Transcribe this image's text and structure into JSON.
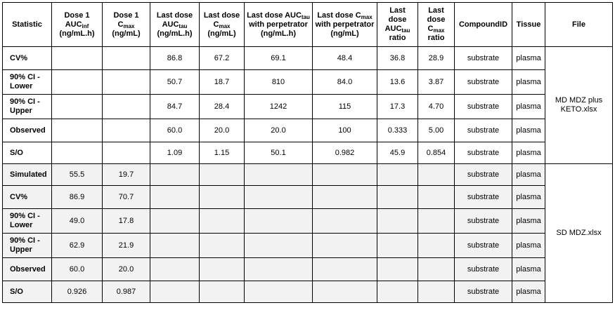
{
  "headers": [
    {
      "main": "Statistic"
    },
    {
      "main": "Dose 1 AUC",
      "sub": "inf",
      "rest": " (ng/mL.h)"
    },
    {
      "main": "Dose 1 C",
      "sub": "max",
      "rest": " (ng/mL)"
    },
    {
      "main": "Last dose AUC",
      "sub": "tau",
      "rest": " (ng/mL.h)"
    },
    {
      "main": "Last dose C",
      "sub": "max",
      "rest": " (ng/mL)"
    },
    {
      "main": "Last dose AUC",
      "sub": "tau",
      "rest": " with perpetrator (ng/mL.h)"
    },
    {
      "main": "Last dose C",
      "sub": "max",
      "rest": " with perpetrator (ng/mL)"
    },
    {
      "main": "Last dose AUC",
      "sub": "tau",
      "rest": " ratio"
    },
    {
      "main": "Last dose C",
      "sub": "max",
      "rest": " ratio"
    },
    {
      "main": "CompoundID"
    },
    {
      "main": "Tissue"
    },
    {
      "main": "File"
    }
  ],
  "groups": [
    {
      "file": "MD MDZ plus KETO.xlsx",
      "rows": [
        [
          "CV%",
          "",
          "",
          "86.8",
          "67.2",
          "69.1",
          "48.4",
          "36.8",
          "28.9",
          "substrate",
          "plasma"
        ],
        [
          "90% CI - Lower",
          "",
          "",
          "50.7",
          "18.7",
          "810",
          "84.0",
          "13.6",
          "3.87",
          "substrate",
          "plasma"
        ],
        [
          "90% CI - Upper",
          "",
          "",
          "84.7",
          "28.4",
          "1242",
          "115",
          "17.3",
          "4.70",
          "substrate",
          "plasma"
        ],
        [
          "Observed",
          "",
          "",
          "60.0",
          "20.0",
          "20.0",
          "100",
          "0.333",
          "5.00",
          "substrate",
          "plasma"
        ],
        [
          "S/O",
          "",
          "",
          "1.09",
          "1.15",
          "50.1",
          "0.982",
          "45.9",
          "0.854",
          "substrate",
          "plasma"
        ]
      ]
    },
    {
      "file": "SD MDZ.xlsx",
      "rows": [
        [
          "Simulated",
          "55.5",
          "19.7",
          "",
          "",
          "",
          "",
          "",
          "",
          "substrate",
          "plasma"
        ],
        [
          "CV%",
          "86.9",
          "70.7",
          "",
          "",
          "",
          "",
          "",
          "",
          "substrate",
          "plasma"
        ],
        [
          "90% CI - Lower",
          "49.0",
          "17.8",
          "",
          "",
          "",
          "",
          "",
          "",
          "substrate",
          "plasma"
        ],
        [
          "90% CI - Upper",
          "62.9",
          "21.9",
          "",
          "",
          "",
          "",
          "",
          "",
          "substrate",
          "plasma"
        ],
        [
          "Observed",
          "60.0",
          "20.0",
          "",
          "",
          "",
          "",
          "",
          "",
          "substrate",
          "plasma"
        ],
        [
          "S/O",
          "0.926",
          "0.987",
          "",
          "",
          "",
          "",
          "",
          "",
          "substrate",
          "plasma"
        ]
      ]
    }
  ]
}
